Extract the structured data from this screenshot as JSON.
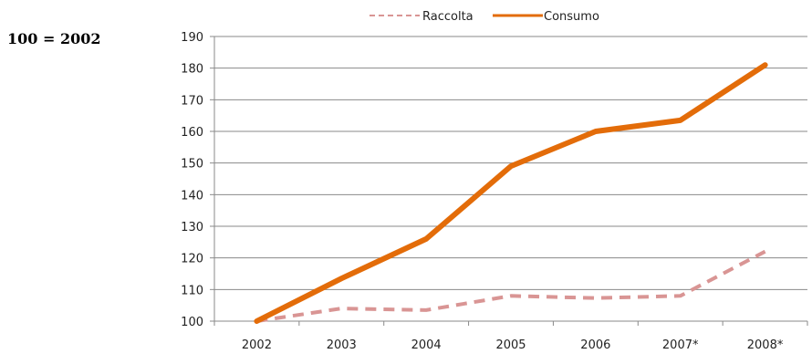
{
  "chart_data": {
    "type": "line",
    "title": "",
    "base_note": "100 = 2002",
    "xlabel": "",
    "ylabel": "",
    "categories": [
      "2002",
      "2003",
      "2004",
      "2005",
      "2006",
      "2007*",
      "2008*"
    ],
    "ylim": [
      100,
      190
    ],
    "yticks": [
      100,
      110,
      120,
      130,
      140,
      150,
      160,
      170,
      180,
      190
    ],
    "grid": true,
    "legend_position": "top",
    "series": [
      {
        "name": "Raccolta",
        "values": [
          100,
          104,
          103.5,
          108,
          107.3,
          108,
          122
        ],
        "color": "#d99594",
        "style": "dashed"
      },
      {
        "name": "Consumo",
        "values": [
          100,
          113.5,
          126,
          149,
          160,
          163.5,
          181
        ],
        "color": "#e36c09",
        "style": "solid"
      }
    ]
  }
}
